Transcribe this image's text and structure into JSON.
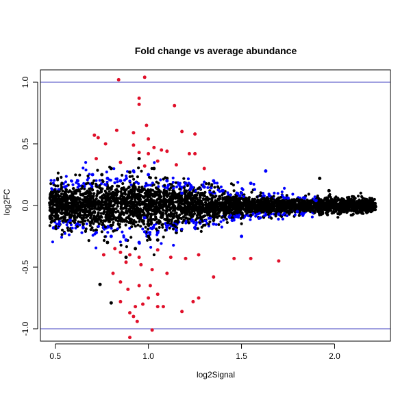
{
  "chart_data": {
    "type": "scatter",
    "title": "Fold change vs average abundance",
    "xlabel": "log2Signal",
    "ylabel": "log2FC",
    "xlim": [
      0.42,
      2.3
    ],
    "ylim": [
      -1.1,
      1.1
    ],
    "x_ticks": [
      0.5,
      1.0,
      1.5,
      2.0
    ],
    "x_tick_labels": [
      "0.5",
      "1.0",
      "1.5",
      "2.0"
    ],
    "y_ticks": [
      -1.0,
      -0.5,
      0.0,
      0.5,
      1.0
    ],
    "y_tick_labels": [
      "-1.0",
      "-0.5",
      "0.0",
      "0.5",
      "1.0"
    ],
    "reference_lines": [
      1.0,
      -1.0
    ],
    "reference_line_color": "#4040c0",
    "grid": false,
    "legend": "none",
    "series_colors": {
      "not_significant": "#000000",
      "significant": "#0000ff",
      "high_fold_change": "#e0102a"
    },
    "series": [
      {
        "key": "not_significant",
        "color": "#000000",
        "points": [
          [
            0.47,
            0.02
          ],
          [
            0.5,
            -0.03
          ],
          [
            0.55,
            0.08
          ],
          [
            0.58,
            -0.1
          ],
          [
            0.62,
            0.12
          ],
          [
            0.65,
            -0.15
          ],
          [
            0.7,
            0.18
          ],
          [
            0.72,
            -0.2
          ],
          [
            0.75,
            0.25
          ],
          [
            0.78,
            -0.3
          ],
          [
            0.8,
            0.3
          ],
          [
            0.8,
            -0.79
          ],
          [
            0.85,
            0.2
          ],
          [
            0.88,
            -0.42
          ],
          [
            0.9,
            0.27
          ],
          [
            0.93,
            -0.35
          ],
          [
            0.95,
            0.38
          ],
          [
            1.0,
            -0.25
          ],
          [
            1.03,
            0.3
          ],
          [
            1.05,
            -0.28
          ],
          [
            1.1,
            0.22
          ],
          [
            1.15,
            -0.22
          ],
          [
            1.2,
            0.18
          ],
          [
            1.25,
            -0.18
          ],
          [
            1.3,
            0.15
          ],
          [
            1.35,
            -0.12
          ],
          [
            1.4,
            0.12
          ],
          [
            1.45,
            -0.1
          ],
          [
            1.5,
            0.1
          ],
          [
            1.55,
            -0.08
          ],
          [
            1.6,
            0.08
          ],
          [
            1.65,
            -0.06
          ],
          [
            1.7,
            0.06
          ],
          [
            1.75,
            -0.05
          ],
          [
            1.8,
            0.05
          ],
          [
            1.85,
            -0.04
          ],
          [
            1.9,
            0.04
          ],
          [
            1.95,
            -0.03
          ],
          [
            2.0,
            0.02
          ],
          [
            2.05,
            -0.02
          ],
          [
            2.1,
            0.01
          ],
          [
            2.15,
            -0.01
          ],
          [
            2.2,
            0.0
          ],
          [
            2.22,
            -0.01
          ],
          [
            0.74,
            -0.64
          ],
          [
            1.92,
            0.22
          ],
          [
            1.97,
            0.12
          ],
          [
            0.6,
            0.05
          ],
          [
            0.66,
            -0.05
          ],
          [
            1.12,
            0.06
          ]
        ]
      },
      {
        "key": "significant",
        "color": "#0000ff",
        "points": [
          [
            0.55,
            0.15
          ],
          [
            0.58,
            -0.12
          ],
          [
            0.62,
            0.2
          ],
          [
            0.65,
            -0.18
          ],
          [
            0.7,
            0.25
          ],
          [
            0.72,
            -0.22
          ],
          [
            0.78,
            0.22
          ],
          [
            0.8,
            -0.25
          ],
          [
            0.85,
            0.2
          ],
          [
            0.88,
            -0.28
          ],
          [
            0.92,
            0.28
          ],
          [
            0.95,
            -0.3
          ],
          [
            1.0,
            0.25
          ],
          [
            1.05,
            -0.22
          ],
          [
            1.1,
            0.2
          ],
          [
            1.15,
            -0.2
          ],
          [
            1.2,
            0.18
          ],
          [
            1.25,
            -0.18
          ],
          [
            1.3,
            0.15
          ],
          [
            1.35,
            -0.15
          ],
          [
            1.4,
            0.12
          ],
          [
            1.45,
            -0.12
          ],
          [
            1.5,
            0.1
          ],
          [
            1.55,
            0.18
          ],
          [
            1.6,
            -0.1
          ],
          [
            1.65,
            0.08
          ],
          [
            1.7,
            -0.07
          ],
          [
            1.75,
            0.06
          ],
          [
            1.8,
            -0.05
          ],
          [
            1.9,
            0.04
          ],
          [
            1.63,
            0.28
          ],
          [
            1.5,
            -0.25
          ],
          [
            1.35,
            0.2
          ],
          [
            1.18,
            0.1
          ],
          [
            0.98,
            -0.1
          ]
        ]
      },
      {
        "key": "high_fold_change",
        "color": "#e0102a",
        "points": [
          [
            0.84,
            1.02
          ],
          [
            0.98,
            1.04
          ],
          [
            0.95,
            0.87
          ],
          [
            0.95,
            0.82
          ],
          [
            1.14,
            0.81
          ],
          [
            0.99,
            0.65
          ],
          [
            0.83,
            0.61
          ],
          [
            0.92,
            0.59
          ],
          [
            1.18,
            0.6
          ],
          [
            1.25,
            0.58
          ],
          [
            0.71,
            0.57
          ],
          [
            0.73,
            0.55
          ],
          [
            1.0,
            0.54
          ],
          [
            0.77,
            0.5
          ],
          [
            0.92,
            0.49
          ],
          [
            1.03,
            0.47
          ],
          [
            1.07,
            0.45
          ],
          [
            0.95,
            0.43
          ],
          [
            1.0,
            0.42
          ],
          [
            1.1,
            0.44
          ],
          [
            1.22,
            0.42
          ],
          [
            1.25,
            0.42
          ],
          [
            0.72,
            0.38
          ],
          [
            0.85,
            0.35
          ],
          [
            0.98,
            0.32
          ],
          [
            1.05,
            0.36
          ],
          [
            1.15,
            0.33
          ],
          [
            1.3,
            0.3
          ],
          [
            0.82,
            -0.35
          ],
          [
            0.85,
            -0.38
          ],
          [
            0.76,
            -0.4
          ],
          [
            0.9,
            -0.4
          ],
          [
            0.95,
            -0.42
          ],
          [
            1.05,
            -0.36
          ],
          [
            1.12,
            -0.42
          ],
          [
            1.2,
            -0.43
          ],
          [
            1.27,
            -0.4
          ],
          [
            1.46,
            -0.43
          ],
          [
            1.55,
            -0.43
          ],
          [
            1.7,
            -0.45
          ],
          [
            0.88,
            -0.46
          ],
          [
            0.96,
            -0.48
          ],
          [
            1.02,
            -0.52
          ],
          [
            0.81,
            -0.55
          ],
          [
            1.1,
            -0.55
          ],
          [
            1.35,
            -0.58
          ],
          [
            0.85,
            -0.62
          ],
          [
            0.95,
            -0.65
          ],
          [
            1.01,
            -0.65
          ],
          [
            0.89,
            -0.68
          ],
          [
            1.05,
            -0.72
          ],
          [
            1.0,
            -0.75
          ],
          [
            1.27,
            -0.75
          ],
          [
            1.24,
            -0.78
          ],
          [
            0.85,
            -0.78
          ],
          [
            0.97,
            -0.8
          ],
          [
            1.05,
            -0.82
          ],
          [
            1.08,
            -0.82
          ],
          [
            1.18,
            -0.86
          ],
          [
            0.9,
            -0.87
          ],
          [
            0.92,
            -0.9
          ],
          [
            0.94,
            -0.94
          ],
          [
            0.9,
            -1.07
          ],
          [
            1.02,
            -1.01
          ],
          [
            0.93,
            -0.82
          ]
        ]
      }
    ]
  }
}
